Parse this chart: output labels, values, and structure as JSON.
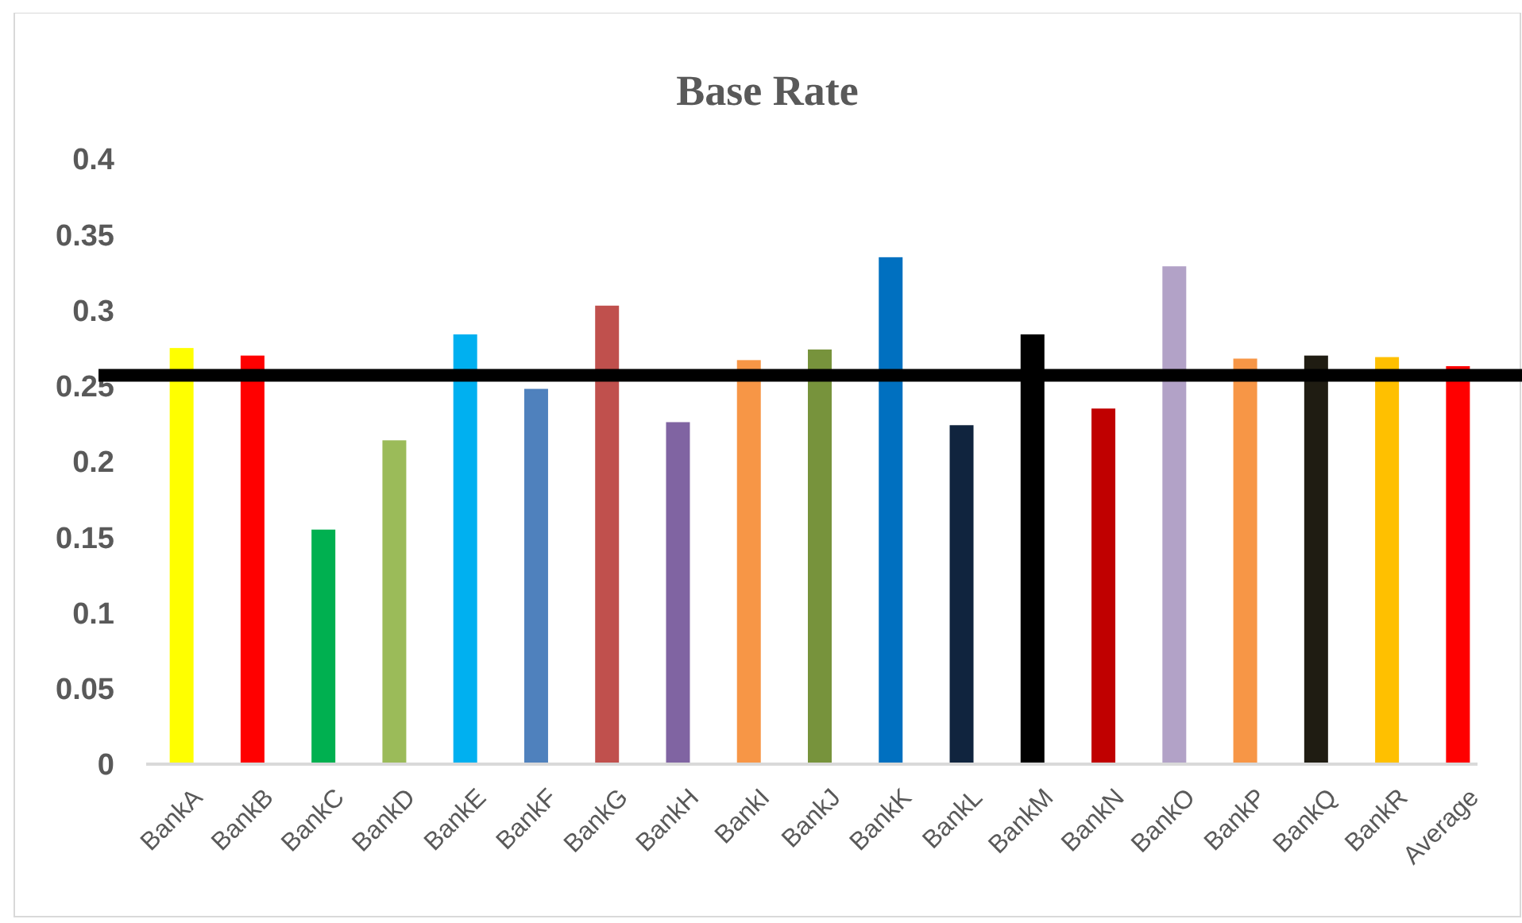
{
  "chart_data": {
    "type": "bar",
    "title": "Base Rate",
    "categories": [
      "BankA",
      "BankB",
      "BankC",
      "BankD",
      "BankE",
      "BankF",
      "BankG",
      "BankH",
      "BankI",
      "BankJ",
      "BankK",
      "BankL",
      "BankM",
      "BankN",
      "BankO",
      "BankP",
      "BankQ",
      "BankR",
      "Average"
    ],
    "values": [
      0.275,
      0.27,
      0.155,
      0.214,
      0.284,
      0.248,
      0.303,
      0.226,
      0.267,
      0.274,
      0.335,
      0.224,
      0.284,
      0.235,
      0.329,
      0.268,
      0.27,
      0.269,
      0.263
    ],
    "colors": [
      "#ffff00",
      "#ff0000",
      "#00b050",
      "#9bbb59",
      "#00b0f0",
      "#4f81bd",
      "#c0504d",
      "#8064a2",
      "#f79646",
      "#77933c",
      "#0070c0",
      "#10243e",
      "#000000",
      "#c00000",
      "#b2a2c7",
      "#f79646",
      "#1f1c12",
      "#ffc000",
      "#ff0000"
    ],
    "ylim": [
      0,
      0.4
    ],
    "yticks": [
      0,
      0.05,
      0.1,
      0.15,
      0.2,
      0.25,
      0.3,
      0.35,
      0.4
    ],
    "grid": false,
    "ref_lines": [
      {
        "axis": "y",
        "value": 0.257,
        "color": "#000000"
      }
    ]
  }
}
